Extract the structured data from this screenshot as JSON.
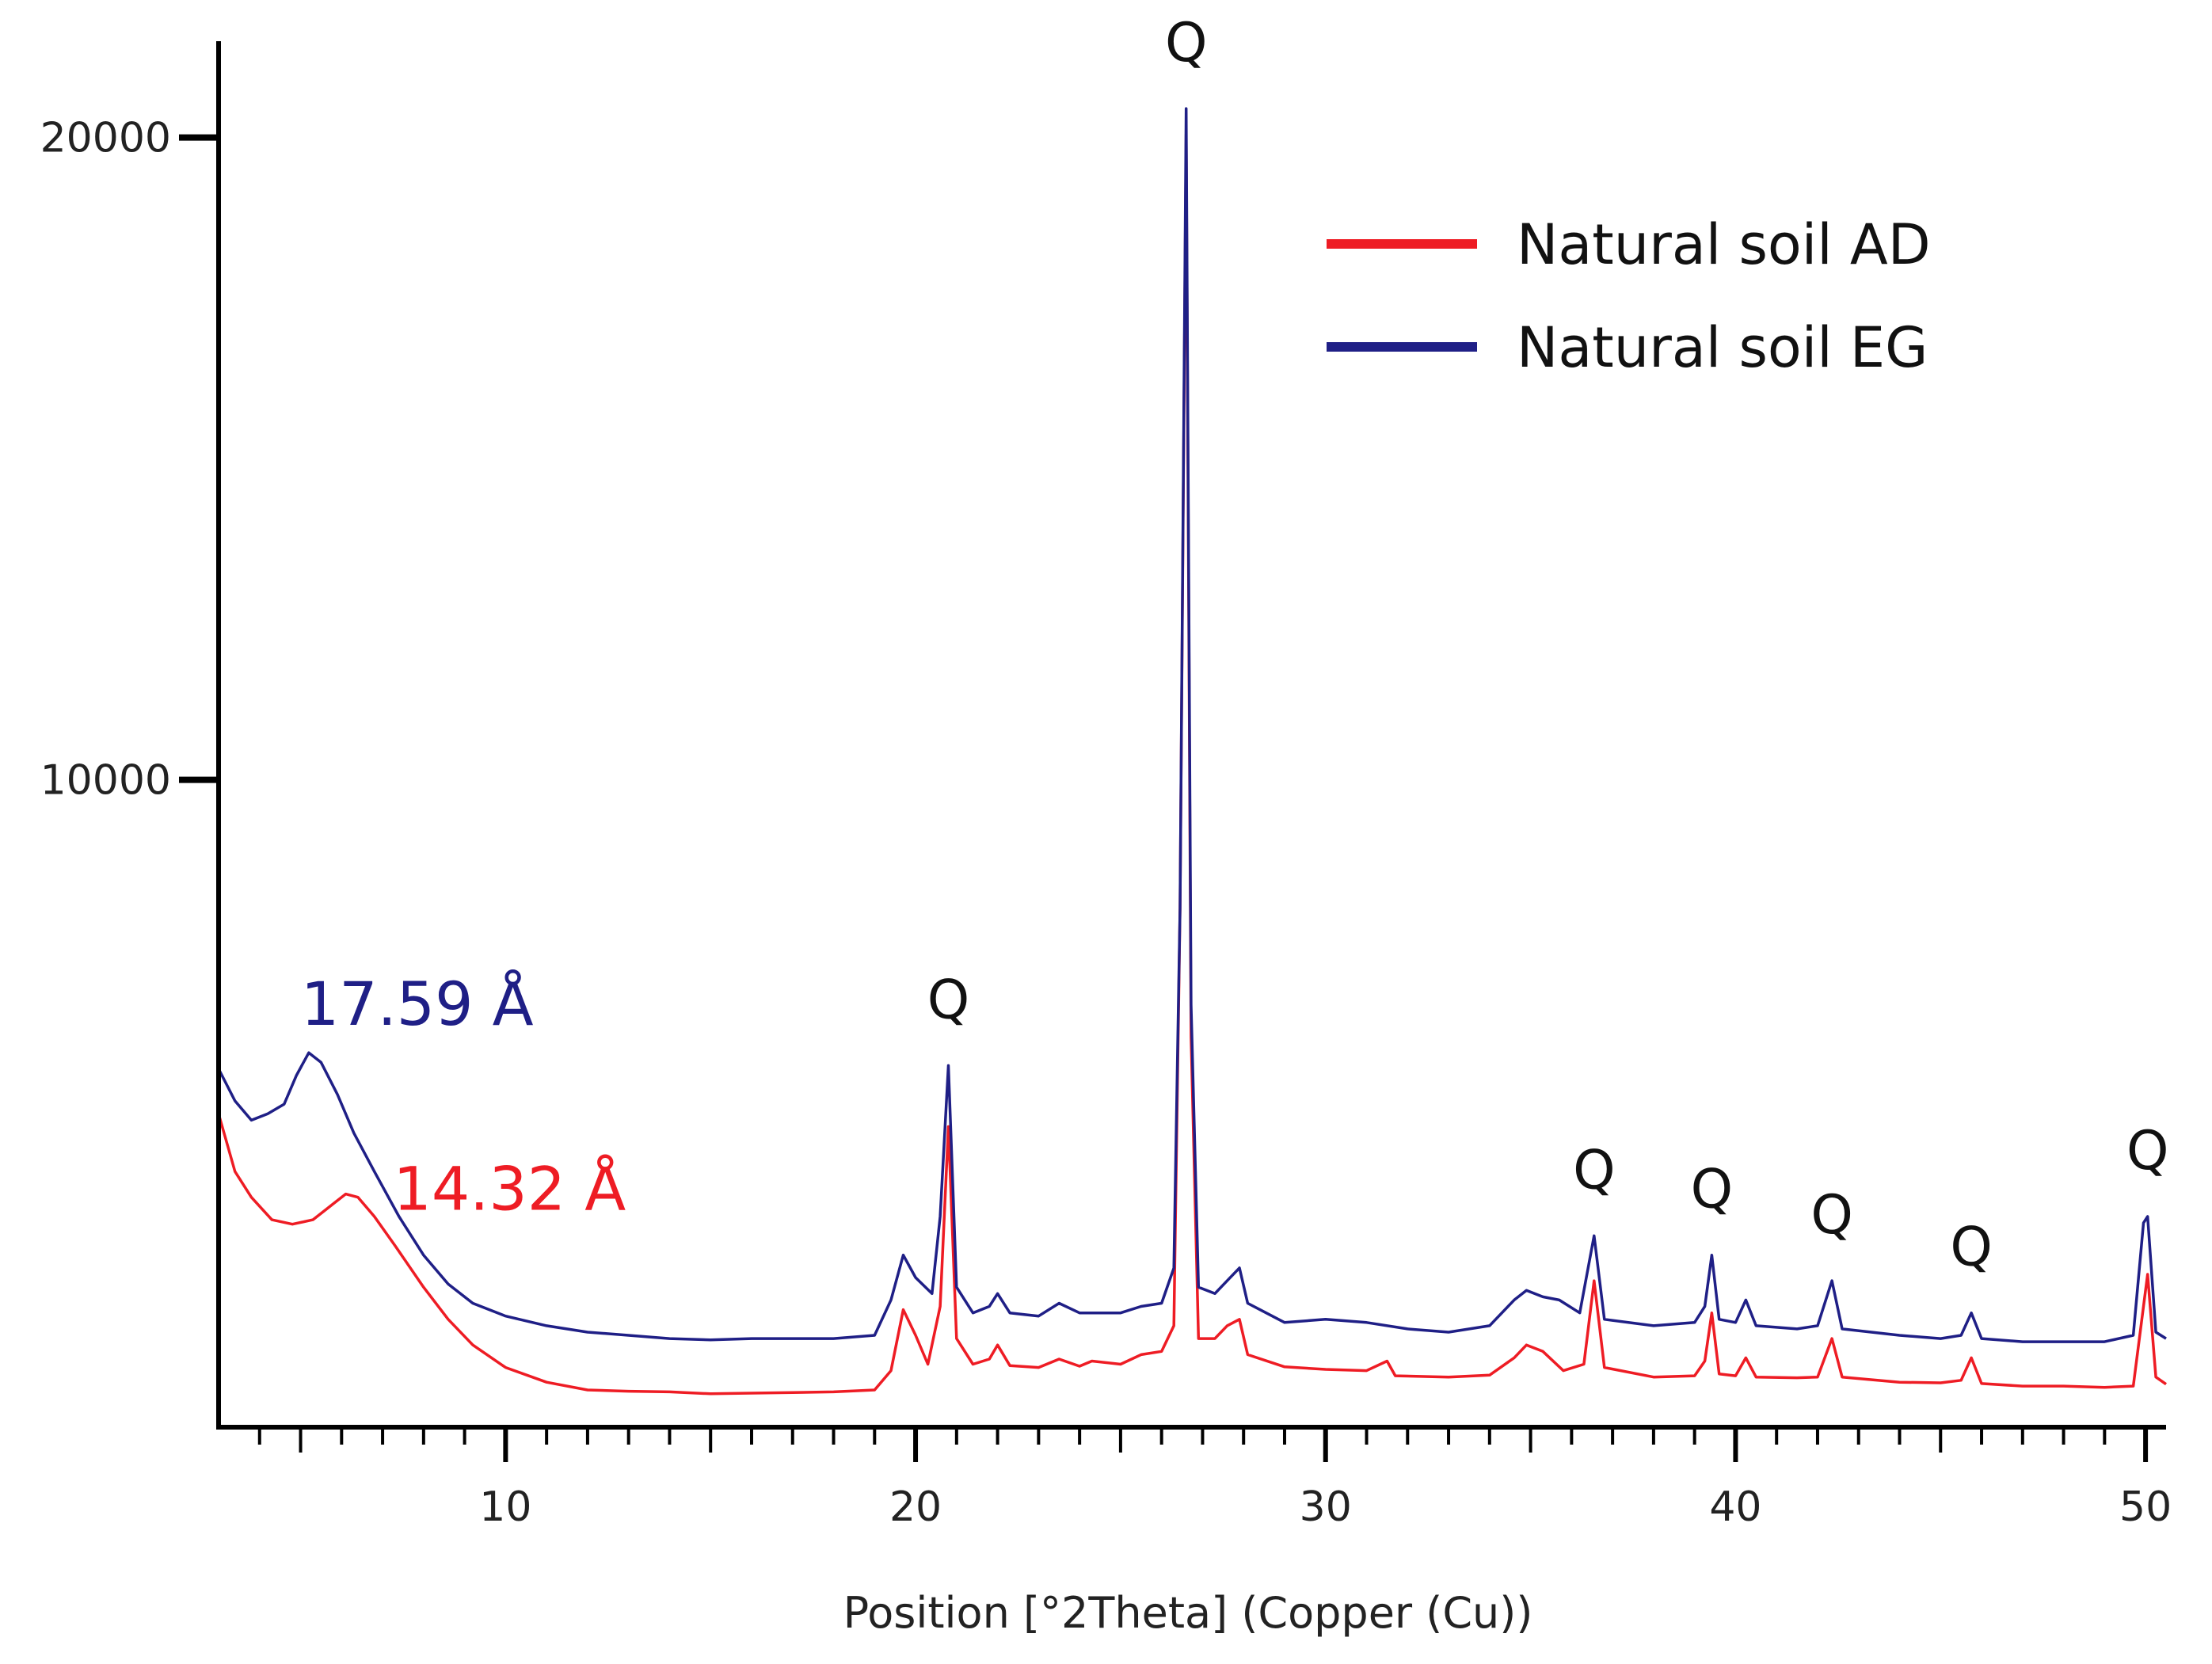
{
  "chart_data": {
    "type": "line",
    "title": "",
    "xlabel": "Position [°2Theta] (Copper (Cu))",
    "ylabel": "",
    "xlim": [
      3,
      50.5
    ],
    "ylim": [
      -80,
      21500
    ],
    "x_ticks": [
      10,
      20,
      30,
      40,
      50
    ],
    "y_ticks": [
      10000,
      20000
    ],
    "grid": false,
    "legend_position": "top-right",
    "series": [
      {
        "name": "Natural soil AD",
        "color": "#ee1c24",
        "points": [
          [
            3.0,
            4800
          ],
          [
            3.4,
            3900
          ],
          [
            3.8,
            3500
          ],
          [
            4.3,
            3150
          ],
          [
            4.8,
            3080
          ],
          [
            5.3,
            3150
          ],
          [
            5.8,
            3400
          ],
          [
            6.1,
            3550
          ],
          [
            6.4,
            3500
          ],
          [
            6.8,
            3200
          ],
          [
            7.3,
            2750
          ],
          [
            8.0,
            2100
          ],
          [
            8.6,
            1600
          ],
          [
            9.2,
            1200
          ],
          [
            10.0,
            850
          ],
          [
            11.0,
            620
          ],
          [
            12.0,
            500
          ],
          [
            13.0,
            480
          ],
          [
            14.0,
            470
          ],
          [
            15.0,
            440
          ],
          [
            16.0,
            450
          ],
          [
            17.0,
            460
          ],
          [
            18.0,
            470
          ],
          [
            19.0,
            500
          ],
          [
            19.4,
            800
          ],
          [
            19.7,
            1750
          ],
          [
            20.0,
            1350
          ],
          [
            20.3,
            900
          ],
          [
            20.6,
            1800
          ],
          [
            20.8,
            4600
          ],
          [
            21.0,
            1300
          ],
          [
            21.4,
            900
          ],
          [
            21.8,
            980
          ],
          [
            22.0,
            1200
          ],
          [
            22.3,
            880
          ],
          [
            23.0,
            850
          ],
          [
            23.5,
            980
          ],
          [
            24.0,
            870
          ],
          [
            24.3,
            950
          ],
          [
            25.0,
            900
          ],
          [
            25.5,
            1050
          ],
          [
            26.0,
            1100
          ],
          [
            26.3,
            1500
          ],
          [
            26.45,
            8000
          ],
          [
            26.6,
            20050
          ],
          [
            26.72,
            6000
          ],
          [
            26.9,
            1300
          ],
          [
            27.3,
            1300
          ],
          [
            27.6,
            1500
          ],
          [
            27.9,
            1600
          ],
          [
            28.1,
            1050
          ],
          [
            29.0,
            860
          ],
          [
            30.0,
            820
          ],
          [
            31.0,
            800
          ],
          [
            31.5,
            950
          ],
          [
            31.7,
            720
          ],
          [
            33.0,
            700
          ],
          [
            34.0,
            730
          ],
          [
            34.6,
            1000
          ],
          [
            34.9,
            1200
          ],
          [
            35.3,
            1100
          ],
          [
            35.8,
            800
          ],
          [
            36.3,
            900
          ],
          [
            36.55,
            2200
          ],
          [
            36.8,
            850
          ],
          [
            38.0,
            700
          ],
          [
            39.0,
            720
          ],
          [
            39.25,
            950
          ],
          [
            39.42,
            1700
          ],
          [
            39.6,
            750
          ],
          [
            40.0,
            720
          ],
          [
            40.25,
            1000
          ],
          [
            40.5,
            700
          ],
          [
            41.5,
            690
          ],
          [
            42.0,
            700
          ],
          [
            42.35,
            1300
          ],
          [
            42.6,
            700
          ],
          [
            44.0,
            620
          ],
          [
            45.0,
            610
          ],
          [
            45.5,
            650
          ],
          [
            45.75,
            1000
          ],
          [
            46.0,
            600
          ],
          [
            47.0,
            560
          ],
          [
            48.0,
            560
          ],
          [
            49.0,
            540
          ],
          [
            49.7,
            560
          ],
          [
            49.95,
            1800
          ],
          [
            50.05,
            2300
          ],
          [
            50.25,
            700
          ],
          [
            50.5,
            590
          ]
        ]
      },
      {
        "name": "Natural soil EG",
        "color": "#1f1f86",
        "points": [
          [
            3.0,
            5500
          ],
          [
            3.4,
            5000
          ],
          [
            3.8,
            4700
          ],
          [
            4.2,
            4800
          ],
          [
            4.6,
            4950
          ],
          [
            4.9,
            5400
          ],
          [
            5.2,
            5750
          ],
          [
            5.5,
            5600
          ],
          [
            5.9,
            5100
          ],
          [
            6.3,
            4500
          ],
          [
            6.8,
            3900
          ],
          [
            7.4,
            3200
          ],
          [
            8.0,
            2600
          ],
          [
            8.6,
            2150
          ],
          [
            9.2,
            1850
          ],
          [
            10.0,
            1650
          ],
          [
            11.0,
            1500
          ],
          [
            12.0,
            1400
          ],
          [
            13.0,
            1350
          ],
          [
            14.0,
            1300
          ],
          [
            15.0,
            1280
          ],
          [
            16.0,
            1300
          ],
          [
            17.0,
            1300
          ],
          [
            18.0,
            1300
          ],
          [
            19.0,
            1350
          ],
          [
            19.4,
            1900
          ],
          [
            19.7,
            2600
          ],
          [
            20.0,
            2250
          ],
          [
            20.4,
            2000
          ],
          [
            20.6,
            3200
          ],
          [
            20.8,
            5550
          ],
          [
            21.0,
            2100
          ],
          [
            21.4,
            1700
          ],
          [
            21.8,
            1800
          ],
          [
            22.0,
            2000
          ],
          [
            22.3,
            1700
          ],
          [
            23.0,
            1650
          ],
          [
            23.5,
            1850
          ],
          [
            24.0,
            1700
          ],
          [
            24.5,
            1700
          ],
          [
            25.0,
            1700
          ],
          [
            25.5,
            1800
          ],
          [
            26.0,
            1850
          ],
          [
            26.3,
            2400
          ],
          [
            26.45,
            8000
          ],
          [
            26.6,
            20450
          ],
          [
            26.72,
            6500
          ],
          [
            26.9,
            2100
          ],
          [
            27.3,
            2000
          ],
          [
            27.6,
            2200
          ],
          [
            27.9,
            2400
          ],
          [
            28.1,
            1850
          ],
          [
            29.0,
            1550
          ],
          [
            30.0,
            1600
          ],
          [
            31.0,
            1550
          ],
          [
            32.0,
            1450
          ],
          [
            33.0,
            1400
          ],
          [
            34.0,
            1500
          ],
          [
            34.6,
            1900
          ],
          [
            34.9,
            2050
          ],
          [
            35.3,
            1950
          ],
          [
            35.7,
            1900
          ],
          [
            36.2,
            1700
          ],
          [
            36.55,
            2900
          ],
          [
            36.8,
            1600
          ],
          [
            38.0,
            1500
          ],
          [
            39.0,
            1550
          ],
          [
            39.25,
            1800
          ],
          [
            39.42,
            2600
          ],
          [
            39.6,
            1600
          ],
          [
            40.0,
            1550
          ],
          [
            40.25,
            1900
          ],
          [
            40.5,
            1500
          ],
          [
            41.5,
            1450
          ],
          [
            42.0,
            1500
          ],
          [
            42.35,
            2200
          ],
          [
            42.6,
            1450
          ],
          [
            44.0,
            1350
          ],
          [
            45.0,
            1300
          ],
          [
            45.5,
            1350
          ],
          [
            45.75,
            1700
          ],
          [
            46.0,
            1300
          ],
          [
            47.0,
            1250
          ],
          [
            48.0,
            1250
          ],
          [
            49.0,
            1250
          ],
          [
            49.7,
            1350
          ],
          [
            49.95,
            3100
          ],
          [
            50.05,
            3200
          ],
          [
            50.25,
            1400
          ],
          [
            50.5,
            1300
          ]
        ]
      }
    ],
    "annotations": [
      {
        "text": "Q",
        "x": 26.6,
        "y": 20450
      },
      {
        "text": "Q",
        "x": 20.8,
        "y": 5550
      },
      {
        "text": "Q",
        "x": 36.55,
        "y": 2900
      },
      {
        "text": "Q",
        "x": 39.42,
        "y": 2600
      },
      {
        "text": "Q",
        "x": 42.35,
        "y": 2200
      },
      {
        "text": "Q",
        "x": 45.75,
        "y": 1700
      },
      {
        "text": "Q",
        "x": 50.05,
        "y": 3200
      }
    ],
    "d_spacing_labels": [
      {
        "text": "17.59 Å",
        "series": "Natural soil EG",
        "color": "#1f1f86",
        "x": 5.2,
        "y": 5750
      },
      {
        "text": "14.32 Å",
        "series": "Natural soil AD",
        "color": "#ee1c24",
        "x": 6.1,
        "y": 3550
      }
    ]
  }
}
